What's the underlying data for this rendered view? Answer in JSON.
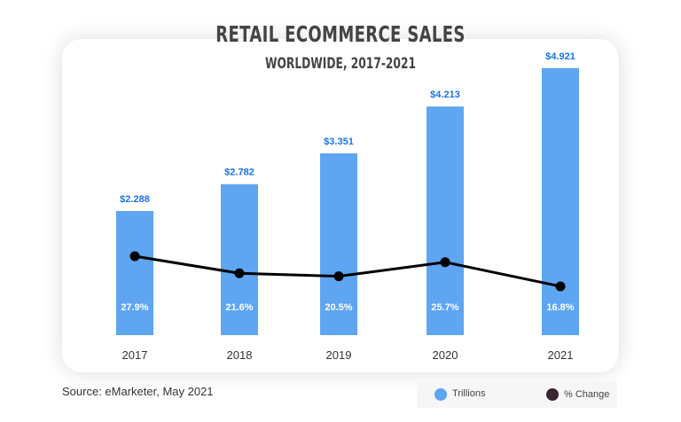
{
  "chart_data": {
    "type": "bar",
    "title": "RETAIL ECOMMERCE SALES",
    "subtitle": "WORLDWIDE, 2017-2021",
    "categories": [
      "2017",
      "2018",
      "2019",
      "2020",
      "2021"
    ],
    "series": [
      {
        "name": "Trillions",
        "type": "bar",
        "values": [
          2.288,
          2.782,
          3.351,
          4.213,
          4.921
        ],
        "labels": [
          "$2.288",
          "$2.782",
          "$3.351",
          "$4.213",
          "$4.921"
        ],
        "color": "#5ea5f2"
      },
      {
        "name": "% Change",
        "type": "line",
        "values": [
          27.9,
          21.6,
          20.5,
          25.7,
          16.8
        ],
        "labels": [
          "27.9%",
          "21.6%",
          "20.5%",
          "25.7%",
          "16.8%"
        ],
        "color": "#000000"
      }
    ],
    "source": "Source: eMarketer, May 2021",
    "legend_position": "bottom-right"
  }
}
